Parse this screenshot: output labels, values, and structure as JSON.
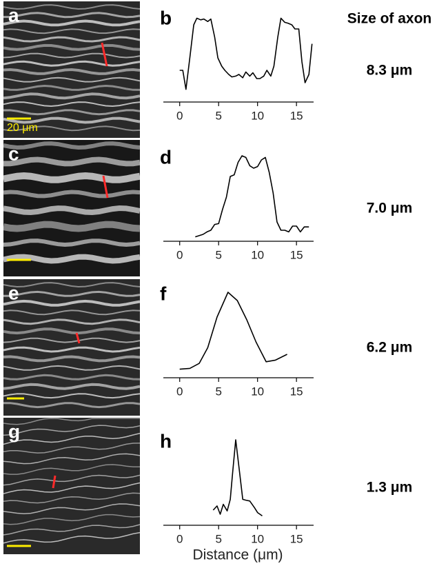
{
  "header": "Size of axon",
  "panels": [
    {
      "label": "a",
      "scale_bar": "20 μm"
    },
    {
      "label": "c"
    },
    {
      "label": "e"
    },
    {
      "label": "g"
    }
  ],
  "chart_data": [
    {
      "type": "line",
      "label": "b",
      "annotation": "8.3 μm",
      "color": "#000000",
      "x": [
        0,
        0.4,
        0.8,
        1.3,
        1.8,
        2.2,
        2.7,
        3.1,
        3.6,
        4.0,
        4.5,
        4.9,
        5.4,
        5.8,
        6.3,
        6.7,
        7.2,
        7.6,
        8.1,
        8.5,
        9.0,
        9.4,
        9.9,
        10.3,
        10.8,
        11.2,
        11.7,
        12.1,
        12.6,
        13.0,
        13.5,
        13.9,
        14.4,
        14.8,
        15.3,
        15.7,
        16.1,
        16.6,
        17.0
      ],
      "values": [
        35,
        35,
        12,
        50,
        90,
        98,
        96,
        97,
        94,
        97,
        75,
        50,
        40,
        35,
        30,
        27,
        28,
        30,
        26,
        33,
        28,
        32,
        25,
        25,
        28,
        35,
        28,
        40,
        75,
        98,
        93,
        92,
        90,
        85,
        85,
        45,
        20,
        30,
        67
      ],
      "xlim": [
        -2.1,
        17.2
      ],
      "ylim": [
        0,
        100
      ],
      "xticks": [
        0,
        5,
        10,
        15
      ]
    },
    {
      "type": "line",
      "label": "d",
      "annotation": "7.0 μm",
      "color": "#000000",
      "x": [
        2,
        3,
        3.5,
        4,
        4.5,
        5,
        5.5,
        6,
        6.5,
        7,
        7.5,
        8,
        8.5,
        9,
        9.5,
        10,
        10.5,
        11,
        11.5,
        12,
        12.5,
        13,
        13.5,
        14,
        14.5,
        15,
        15.5,
        16,
        16.6
      ],
      "values": [
        2,
        5,
        8,
        10,
        17,
        18,
        35,
        50,
        75,
        77,
        92,
        100,
        98,
        88,
        85,
        87,
        95,
        98,
        80,
        55,
        20,
        10,
        10,
        8,
        15,
        15,
        8,
        14,
        14
      ],
      "xlim": [
        -2.1,
        17.2
      ],
      "ylim": [
        0,
        100
      ],
      "xticks": [
        0,
        5,
        10,
        15
      ]
    },
    {
      "type": "line",
      "label": "f",
      "annotation": "6.2 μm",
      "color": "#000000",
      "x": [
        0,
        1.3,
        2.5,
        3.6,
        4.8,
        6.2,
        7.4,
        8.6,
        9.8,
        11.1,
        12.3,
        13.8
      ],
      "values": [
        7,
        8,
        14,
        33,
        70,
        100,
        90,
        67,
        40,
        16,
        18,
        25
      ],
      "xlim": [
        -2.1,
        17.2
      ],
      "ylim": [
        0,
        100
      ],
      "xticks": [
        0,
        5,
        10,
        15
      ]
    },
    {
      "type": "line",
      "label": "h",
      "annotation": "1.3 μm",
      "color": "#000000",
      "x": [
        4.3,
        4.8,
        5.2,
        5.6,
        6.1,
        6.5,
        6.8,
        7.2,
        7.7,
        8.1,
        8.5,
        9.0,
        9.6,
        10.0,
        10.6
      ],
      "values": [
        15,
        20,
        10,
        22,
        14,
        28,
        60,
        100,
        60,
        28,
        27,
        26,
        18,
        12,
        8
      ],
      "xlim": [
        -2.1,
        17.2
      ],
      "ylim": [
        0,
        100
      ],
      "xticks": [
        0,
        5,
        10,
        15
      ],
      "xlabel": "Distance (μm)"
    }
  ]
}
